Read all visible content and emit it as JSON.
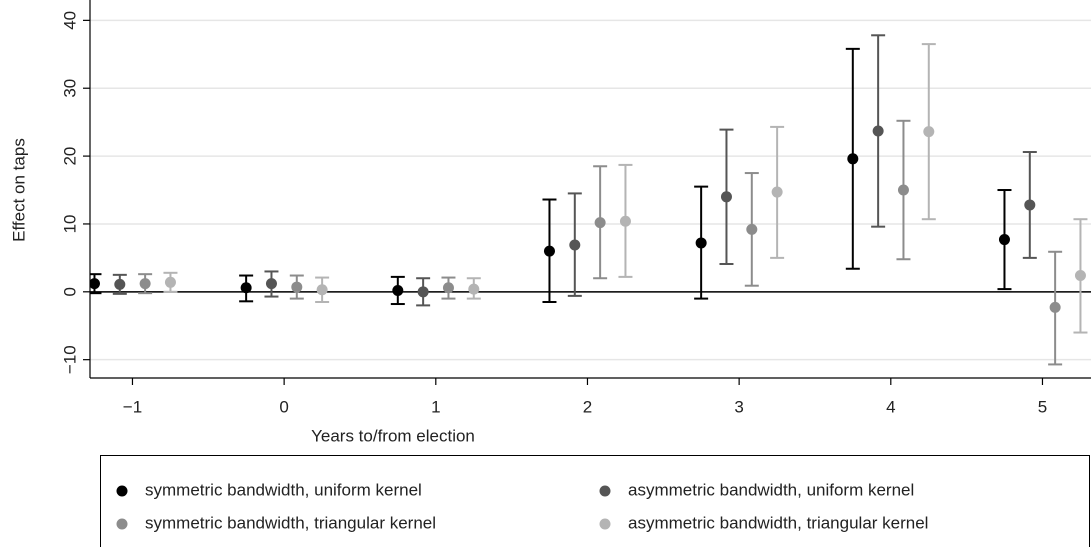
{
  "chart_data": {
    "type": "errorbar",
    "x_label": "Years to/from election",
    "y_label": "Effect on taps",
    "x": [
      -1,
      0,
      1,
      2,
      3,
      4,
      5
    ],
    "xlim": [
      -1.28,
      5.32
    ],
    "ylim": [
      -12.7,
      43
    ],
    "xticks": [
      {
        "value": -1,
        "label": "−1"
      },
      0,
      1,
      2,
      3,
      4,
      5
    ],
    "yticks": [
      {
        "value": -10,
        "label": "−10"
      },
      0,
      10,
      20,
      30,
      40
    ],
    "grid": true,
    "series": [
      {
        "name": "symmetric bandwidth, uniform kernel",
        "color": "#000000",
        "values": [
          1.2,
          0.6,
          0.2,
          6.0,
          7.2,
          19.6,
          7.7
        ],
        "ci_low": [
          -0.2,
          -1.4,
          -1.8,
          -1.5,
          -1.0,
          3.4,
          0.4
        ],
        "ci_high": [
          2.6,
          2.4,
          2.2,
          13.6,
          15.5,
          35.8,
          15.0
        ]
      },
      {
        "name": "asymmetric bandwidth, uniform kernel",
        "color": "#555555",
        "values": [
          1.1,
          1.2,
          0.0,
          6.9,
          14.0,
          23.7,
          12.8
        ],
        "ci_low": [
          -0.3,
          -0.7,
          -2.0,
          -0.6,
          4.1,
          9.6,
          5.0
        ],
        "ci_high": [
          2.5,
          3.0,
          2.0,
          14.5,
          23.9,
          37.8,
          20.6
        ]
      },
      {
        "name": "symmetric bandwidth, triangular kernel",
        "color": "#8c8c8c",
        "values": [
          1.2,
          0.7,
          0.6,
          10.2,
          9.2,
          15.0,
          -2.3
        ],
        "ci_low": [
          -0.2,
          -1.0,
          -1.0,
          2.0,
          0.9,
          4.8,
          -10.7
        ],
        "ci_high": [
          2.6,
          2.4,
          2.1,
          18.5,
          17.5,
          25.2,
          5.9
        ]
      },
      {
        "name": "asymmetric bandwidth, triangular kernel",
        "color": "#b4b4b4",
        "values": [
          1.4,
          0.3,
          0.4,
          10.4,
          14.7,
          23.6,
          2.4
        ],
        "ci_low": [
          0.0,
          -1.5,
          -1.0,
          2.2,
          5.0,
          10.7,
          -6.0
        ],
        "ci_high": [
          2.8,
          2.1,
          2.0,
          18.7,
          24.3,
          36.5,
          10.7
        ]
      }
    ]
  }
}
